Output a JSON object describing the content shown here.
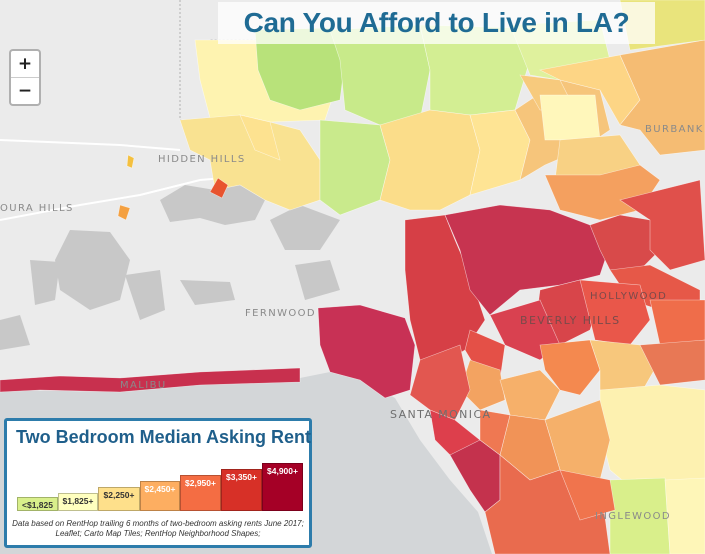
{
  "title": "Can You Afford to Live in LA?",
  "zoom": {
    "in_label": "+",
    "out_label": "−"
  },
  "places": {
    "hidden_hills": "HIDDEN HILLS",
    "agoura_hills": "OURA HILLS",
    "burbank": "BURBANK",
    "fernwood": "FERNWOOD",
    "malibu": "MALIBU",
    "santa_monica": "SANTA MONICA",
    "beverly_hills": "BEVERLY HILLS",
    "hollywood": "HOLLYWOOD",
    "inglewood": "INGLEWOOD"
  },
  "legend": {
    "title": "Two Bedroom Median Asking Rent",
    "items": [
      {
        "label": "<$1,825",
        "color": "#d9ef8b",
        "text_color": "#333333"
      },
      {
        "label": "$1,825+",
        "color": "#ffffbf",
        "text_color": "#333333"
      },
      {
        "label": "$2,250+",
        "color": "#fee08b",
        "text_color": "#333333"
      },
      {
        "label": "$2,450+",
        "color": "#fdae61",
        "text_color": "#ffffff"
      },
      {
        "label": "$2,950+",
        "color": "#f46d43",
        "text_color": "#ffffff"
      },
      {
        "label": "$3,350+",
        "color": "#d73027",
        "text_color": "#ffffff"
      },
      {
        "label": "$4,900+",
        "color": "#a50026",
        "text_color": "#ffffff"
      }
    ],
    "note_line1": "Data based on RentHop trailing 6 months of two-bedroom asking rents June 2017;",
    "note_line2": "Leaflet; Carto Map Tiles; RentHop Neighborhood Shapes;"
  },
  "colors": {
    "land": "#e8e8e8",
    "water": "#cfd3d6",
    "urban": "#c9c9c9",
    "accent": "#1f6b94"
  }
}
